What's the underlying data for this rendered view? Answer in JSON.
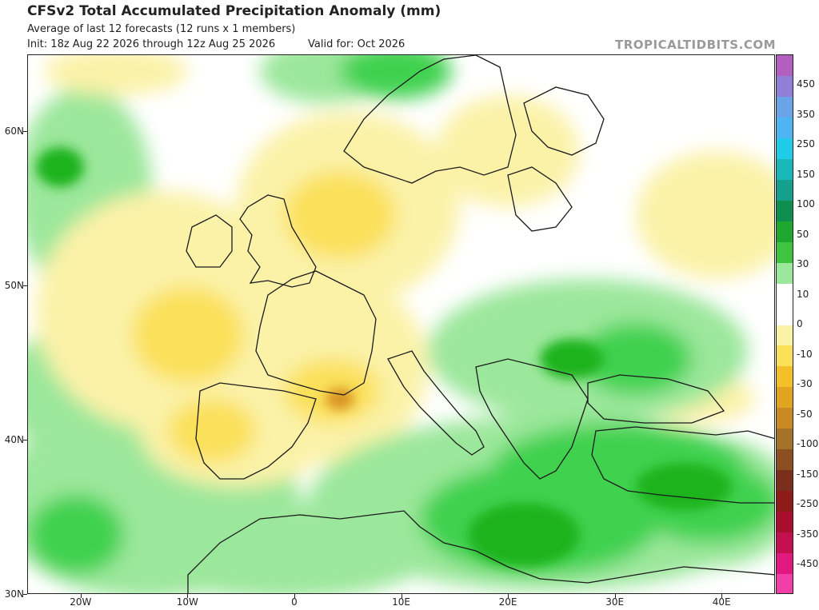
{
  "header": {
    "title": "CFSv2 Total Accumulated Precipitation Anomaly (mm)",
    "subtitle": "Average of last 12 forecasts (12 runs x 1 members)",
    "init": "Init: 18z Aug 22 2026 through 12z Aug 25 2026",
    "valid": "Valid for: Oct 2026",
    "brand": "TROPICALTIDBITS.COM"
  },
  "map": {
    "lon_range": [
      -25,
      45
    ],
    "lat_range": [
      30,
      65
    ],
    "lat_labels": [
      "60N",
      "50N",
      "40N",
      "30N"
    ],
    "lon_labels": [
      "20W",
      "10W",
      "0",
      "10E",
      "20E",
      "30E",
      "40E"
    ],
    "anomaly_colors": {
      "wet_strong": "#1fb31f",
      "wet_moderate": "#3fd14f",
      "wet_light": "#9be79b",
      "neutral": "#ffffff",
      "dry_light": "#fbf2a8",
      "dry_moderate": "#fbe05a",
      "dry_strong": "#f3c02a",
      "dry_very_strong": "#d99420",
      "coastline": "#1a1a1a"
    }
  },
  "colorbar": {
    "labels": [
      "450",
      "350",
      "250",
      "150",
      "100",
      "50",
      "30",
      "10",
      "0",
      "-10",
      "-30",
      "-50",
      "-100",
      "-150",
      "-250",
      "-350",
      "-450"
    ],
    "colors": [
      "#b35fbf",
      "#8f7fd7",
      "#6aa3e7",
      "#4fb5f2",
      "#1fcbe6",
      "#1ab8b8",
      "#14a08c",
      "#0f8f4f",
      "#1fa82f",
      "#3fc43f",
      "#9be79b",
      "#ffffff",
      "#ffffff",
      "#fbf2a8",
      "#fbe05a",
      "#f3c02a",
      "#e0a420",
      "#c98a22",
      "#a5722a",
      "#8c4f22",
      "#7a2f1c",
      "#8f1a1a",
      "#a80f2f",
      "#c4104f",
      "#e0187f",
      "#f23fa8"
    ]
  }
}
